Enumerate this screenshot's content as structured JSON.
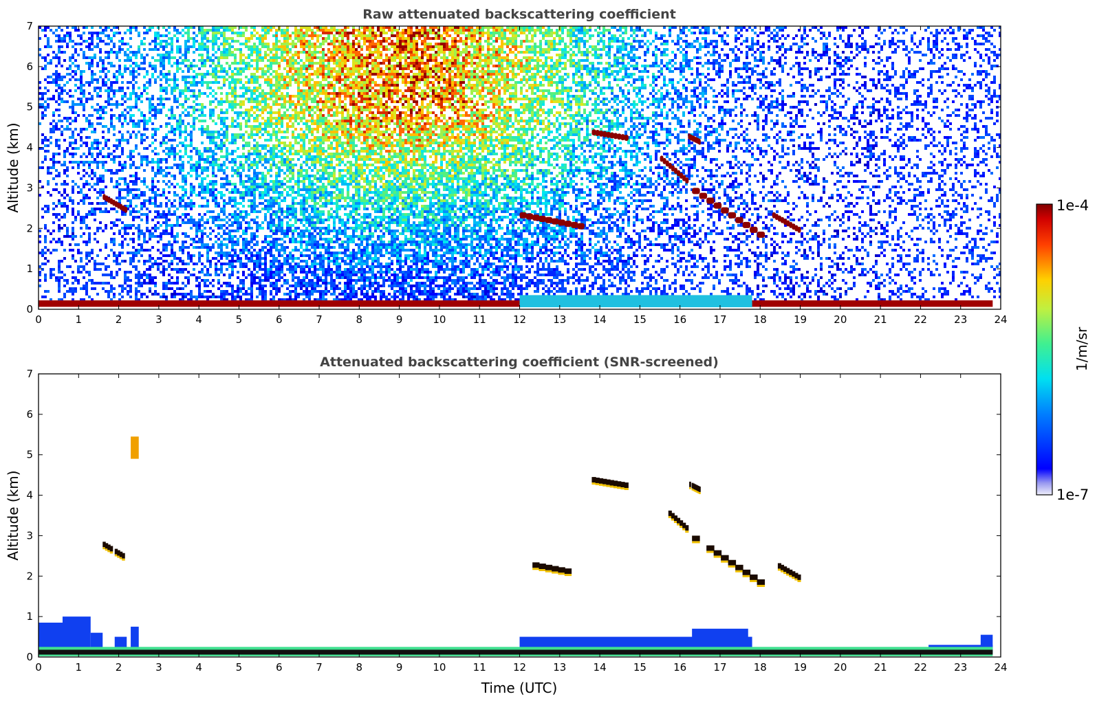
{
  "chart_data": [
    {
      "type": "heatmap",
      "title": "Raw attenuated backscattering coefficient",
      "xlabel": "",
      "ylabel": "Altitude (km)",
      "xlim": [
        0,
        24
      ],
      "ylim": [
        0,
        7
      ],
      "xticks": [
        "0",
        "1",
        "2",
        "3",
        "4",
        "5",
        "6",
        "7",
        "8",
        "9",
        "10",
        "11",
        "12",
        "13",
        "14",
        "15",
        "16",
        "17",
        "18",
        "19",
        "20",
        "21",
        "22",
        "23",
        "24"
      ],
      "yticks": [
        "0",
        "1",
        "2",
        "3",
        "4",
        "5",
        "6",
        "7"
      ],
      "features": [
        {
          "kind": "boundary_layer_top",
          "time_utc": [
            0,
            23.8
          ],
          "altitude_km": 0.15
        },
        {
          "kind": "cloud",
          "time_utc": [
            12.0,
            13.6
          ],
          "altitude_km": [
            2.1,
            2.4
          ]
        },
        {
          "kind": "cloud",
          "time_utc": [
            13.8,
            14.7
          ],
          "altitude_km": [
            4.3,
            4.45
          ]
        },
        {
          "kind": "cloud",
          "time_utc": [
            15.5,
            16.2
          ],
          "altitude_km": [
            3.2,
            3.8
          ]
        },
        {
          "kind": "cloud",
          "time_utc": [
            16.2,
            16.5
          ],
          "altitude_km": [
            4.2,
            4.35
          ]
        },
        {
          "kind": "cloud",
          "time_utc": [
            16.3,
            18.1
          ],
          "altitude_km": [
            1.8,
            3.0
          ]
        },
        {
          "kind": "cloud",
          "time_utc": [
            1.6,
            2.2
          ],
          "altitude_km": [
            2.5,
            2.85
          ]
        },
        {
          "kind": "cloud",
          "time_utc": [
            18.3,
            19.0
          ],
          "altitude_km": [
            2.0,
            2.4
          ]
        }
      ]
    },
    {
      "type": "heatmap",
      "title": "Attenuated backscattering coefficient (SNR-screened)",
      "xlabel": "Time (UTC)",
      "ylabel": "Altitude (km)",
      "xlim": [
        0,
        24
      ],
      "ylim": [
        0,
        7
      ],
      "xticks": [
        "0",
        "1",
        "2",
        "3",
        "4",
        "5",
        "6",
        "7",
        "8",
        "9",
        "10",
        "11",
        "12",
        "13",
        "14",
        "15",
        "16",
        "17",
        "18",
        "19",
        "20",
        "21",
        "22",
        "23",
        "24"
      ],
      "yticks": [
        "0",
        "1",
        "2",
        "3",
        "4",
        "5",
        "6",
        "7"
      ]
    }
  ],
  "colorbar": {
    "max_label": "1e-4",
    "min_label": "1e-7",
    "unit_label": "1/m/sr",
    "colormap": "jet"
  }
}
